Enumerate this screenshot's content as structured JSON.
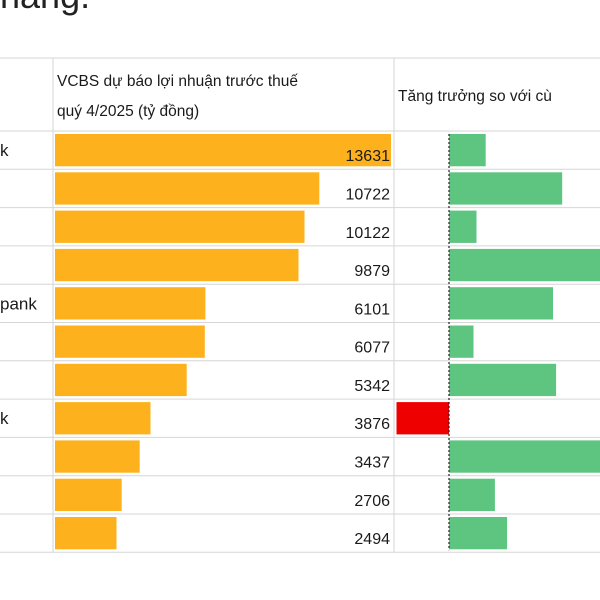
{
  "page": {
    "title_fragment": "nàng."
  },
  "colors": {
    "bar_profit": "#FDB21D",
    "bar_growth_positive": "#5EC580",
    "bar_growth_negative": "#EE0000",
    "grid": "#d6d6d6",
    "zero_line": "#222222"
  },
  "chart_data": {
    "type": "bar",
    "categories": [
      "...k",
      "",
      "",
      "",
      "...pank",
      "",
      "",
      "...k",
      "",
      "",
      ""
    ],
    "columns": [
      {
        "header": "VCBS dự báo lợi nhuận trước thuế quý 4/2025 (tỷ đồng)",
        "header_lines": [
          "VCBS dự báo lợi nhuận trước thuế",
          "quý 4/2025 (tỷ đồng)"
        ],
        "values": [
          13631,
          10722,
          10122,
          9879,
          6101,
          6077,
          5342,
          3876,
          3437,
          2706,
          2494
        ],
        "labels": [
          "13631",
          "10722",
          "10122",
          "9879",
          "6101",
          "6077",
          "5342",
          "3876",
          "3437",
          "2706",
          "2494"
        ],
        "xlim": [
          0,
          13631
        ],
        "color": "#FDB21D"
      },
      {
        "header": "Tăng trưởng so với cù",
        "relative_values": [
          0.24,
          0.74,
          0.18,
          1.0,
          0.68,
          0.16,
          0.7,
          -0.35,
          1.0,
          0.3,
          0.38
        ],
        "color_positive": "#5EC580",
        "color_negative": "#EE0000"
      }
    ],
    "grid": true,
    "legend": "none"
  }
}
